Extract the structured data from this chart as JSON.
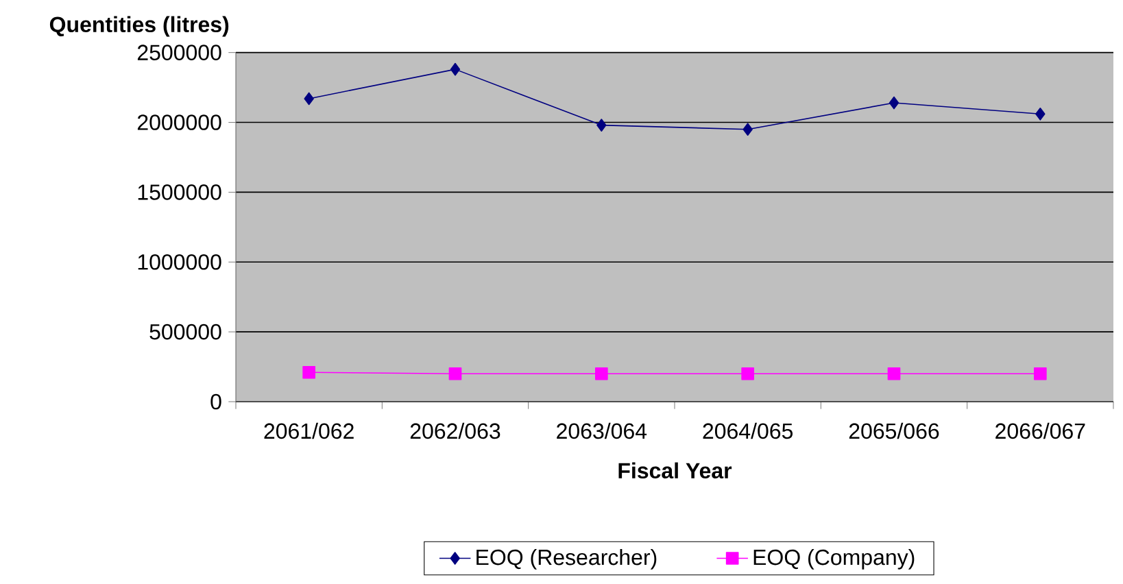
{
  "chart_data": {
    "type": "line",
    "xlabel": "Fiscal Year",
    "ylabel": "Quentities (litres)",
    "categories": [
      "2061/062",
      "2062/063",
      "2063/064",
      "2064/065",
      "2065/066",
      "2066/067"
    ],
    "series": [
      {
        "name": "EOQ (Researcher)",
        "color": "#000080",
        "marker": "diamond",
        "values": [
          2170000,
          2380000,
          1980000,
          1950000,
          2140000,
          2060000
        ]
      },
      {
        "name": "EOQ (Company)",
        "color": "#ff00ff",
        "marker": "square",
        "values": [
          210000,
          200000,
          200000,
          200000,
          200000,
          200000
        ]
      }
    ],
    "ylim": [
      0,
      2500000
    ],
    "yticks": [
      0,
      500000,
      1000000,
      1500000,
      2000000,
      2500000
    ],
    "grid": "y",
    "legend": "bottom",
    "line_style": "solid"
  }
}
